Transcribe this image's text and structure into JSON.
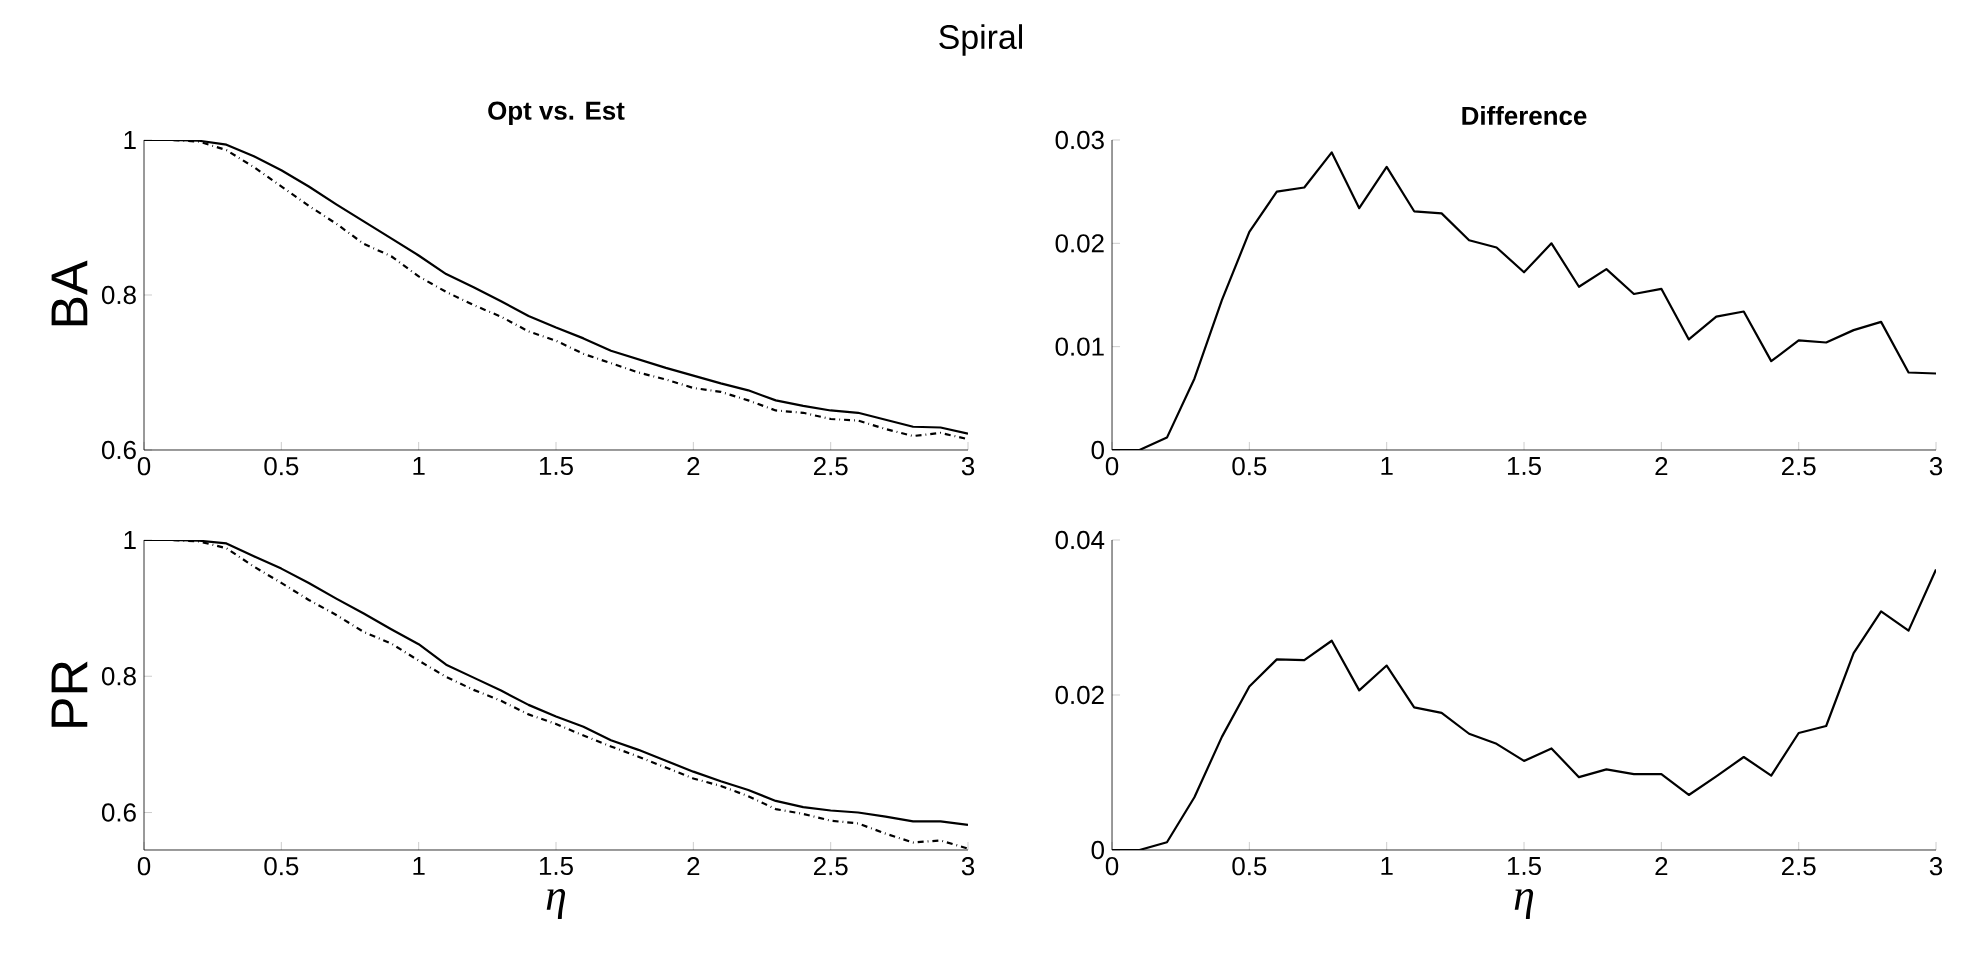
{
  "chart_data": [
    {
      "type": "line",
      "title": "Opt vs. Est",
      "ylabel": "BA",
      "annotations": [
        "Spiral"
      ],
      "xlim": [
        0,
        3
      ],
      "ylim": [
        0.6,
        1
      ],
      "xticks": [
        0,
        0.5,
        1,
        1.5,
        2,
        2.5,
        3
      ],
      "yticks": [
        0.6,
        0.8,
        1
      ],
      "x": [
        0,
        0.1,
        0.2,
        0.3,
        0.4,
        0.5,
        0.6,
        0.7,
        0.8,
        0.9,
        1,
        1.1,
        1.2,
        1.3,
        1.4,
        1.5,
        1.6,
        1.7,
        1.8,
        1.9,
        2,
        2.1,
        2.2,
        2.3,
        2.4,
        2.5,
        2.6,
        2.7,
        2.8,
        2.9,
        3
      ],
      "series": [
        {
          "color": "#000000",
          "line_style": "solid",
          "values": [
            1.0,
            1.0,
            0.999,
            0.994,
            0.979,
            0.961,
            0.94,
            0.917,
            0.895,
            0.873,
            0.851,
            0.827,
            0.81,
            0.792,
            0.773,
            0.758,
            0.744,
            0.728,
            0.717,
            0.706,
            0.696,
            0.686,
            0.677,
            0.664,
            0.657,
            0.651,
            0.648,
            0.639,
            0.63,
            0.629,
            0.621
          ]
        },
        {
          "color": "#000000",
          "line_style": "dashdot",
          "values": [
            1.0,
            1.0,
            0.998,
            0.987,
            0.965,
            0.94,
            0.915,
            0.892,
            0.866,
            0.85,
            0.824,
            0.804,
            0.787,
            0.772,
            0.753,
            0.741,
            0.724,
            0.712,
            0.7,
            0.691,
            0.68,
            0.675,
            0.664,
            0.651,
            0.648,
            0.64,
            0.638,
            0.627,
            0.618,
            0.622,
            0.614
          ]
        }
      ]
    },
    {
      "type": "line",
      "title": "Difference",
      "xlim": [
        0,
        3
      ],
      "ylim": [
        0,
        0.03
      ],
      "xticks": [
        0,
        0.5,
        1,
        1.5,
        2,
        2.5,
        3
      ],
      "yticks": [
        0,
        0.01,
        0.02,
        0.03
      ],
      "x": [
        0,
        0.1,
        0.2,
        0.3,
        0.4,
        0.5,
        0.6,
        0.7,
        0.8,
        0.9,
        1,
        1.1,
        1.2,
        1.3,
        1.4,
        1.5,
        1.6,
        1.7,
        1.8,
        1.9,
        2,
        2.1,
        2.2,
        2.3,
        2.4,
        2.5,
        2.6,
        2.7,
        2.8,
        2.9,
        3
      ],
      "series": [
        {
          "color": "#000000",
          "line_style": "solid",
          "values": [
            0,
            0,
            0.0012,
            0.0069,
            0.0145,
            0.0211,
            0.025,
            0.0254,
            0.0288,
            0.0234,
            0.0274,
            0.0231,
            0.0229,
            0.0203,
            0.0196,
            0.0172,
            0.02,
            0.0158,
            0.0175,
            0.0151,
            0.0156,
            0.0107,
            0.0129,
            0.0134,
            0.0086,
            0.0106,
            0.0104,
            0.0116,
            0.0124,
            0.0075,
            0.0074
          ]
        }
      ]
    },
    {
      "type": "line",
      "ylabel": "PR",
      "xlabel": "η",
      "xlim": [
        0,
        3
      ],
      "ylim": [
        0.545,
        1
      ],
      "xticks": [
        0,
        0.5,
        1,
        1.5,
        2,
        2.5,
        3
      ],
      "yticks": [
        0.6,
        0.8,
        1
      ],
      "x": [
        0,
        0.1,
        0.2,
        0.3,
        0.4,
        0.5,
        0.6,
        0.7,
        0.8,
        0.9,
        1,
        1.1,
        1.2,
        1.3,
        1.4,
        1.5,
        1.6,
        1.7,
        1.8,
        1.9,
        2,
        2.1,
        2.2,
        2.3,
        2.4,
        2.5,
        2.6,
        2.7,
        2.8,
        2.9,
        3
      ],
      "series": [
        {
          "color": "#000000",
          "line_style": "solid",
          "values": [
            1.0,
            1.0,
            0.999,
            0.995,
            0.976,
            0.958,
            0.937,
            0.914,
            0.892,
            0.869,
            0.847,
            0.817,
            0.798,
            0.779,
            0.758,
            0.741,
            0.726,
            0.706,
            0.692,
            0.676,
            0.66,
            0.646,
            0.633,
            0.617,
            0.608,
            0.603,
            0.6,
            0.594,
            0.587,
            0.587,
            0.582
          ]
        },
        {
          "color": "#000000",
          "line_style": "dashdot",
          "values": [
            1.0,
            1.0,
            0.998,
            0.988,
            0.961,
            0.937,
            0.912,
            0.89,
            0.865,
            0.848,
            0.823,
            0.799,
            0.78,
            0.764,
            0.744,
            0.73,
            0.713,
            0.697,
            0.682,
            0.666,
            0.65,
            0.639,
            0.624,
            0.605,
            0.598,
            0.588,
            0.584,
            0.569,
            0.556,
            0.559,
            0.547
          ]
        }
      ]
    },
    {
      "type": "line",
      "xlabel": "η",
      "xlim": [
        0,
        3
      ],
      "ylim": [
        0,
        0.04
      ],
      "xticks": [
        0,
        0.5,
        1,
        1.5,
        2,
        2.5,
        3
      ],
      "yticks": [
        0,
        0.02,
        0.04
      ],
      "x": [
        0,
        0.1,
        0.2,
        0.3,
        0.4,
        0.5,
        0.6,
        0.7,
        0.8,
        0.9,
        1,
        1.1,
        1.2,
        1.3,
        1.4,
        1.5,
        1.6,
        1.7,
        1.8,
        1.9,
        2,
        2.1,
        2.2,
        2.3,
        2.4,
        2.5,
        2.6,
        2.7,
        2.8,
        2.9,
        3
      ],
      "series": [
        {
          "color": "#000000",
          "line_style": "solid",
          "values": [
            0,
            0,
            0.001,
            0.0068,
            0.0146,
            0.0211,
            0.0246,
            0.0245,
            0.027,
            0.0206,
            0.0238,
            0.0184,
            0.0177,
            0.015,
            0.0137,
            0.0115,
            0.0131,
            0.0094,
            0.0104,
            0.0098,
            0.0098,
            0.0071,
            0.0095,
            0.012,
            0.0096,
            0.0151,
            0.016,
            0.0254,
            0.0308,
            0.0283,
            0.0362
          ]
        }
      ]
    }
  ]
}
